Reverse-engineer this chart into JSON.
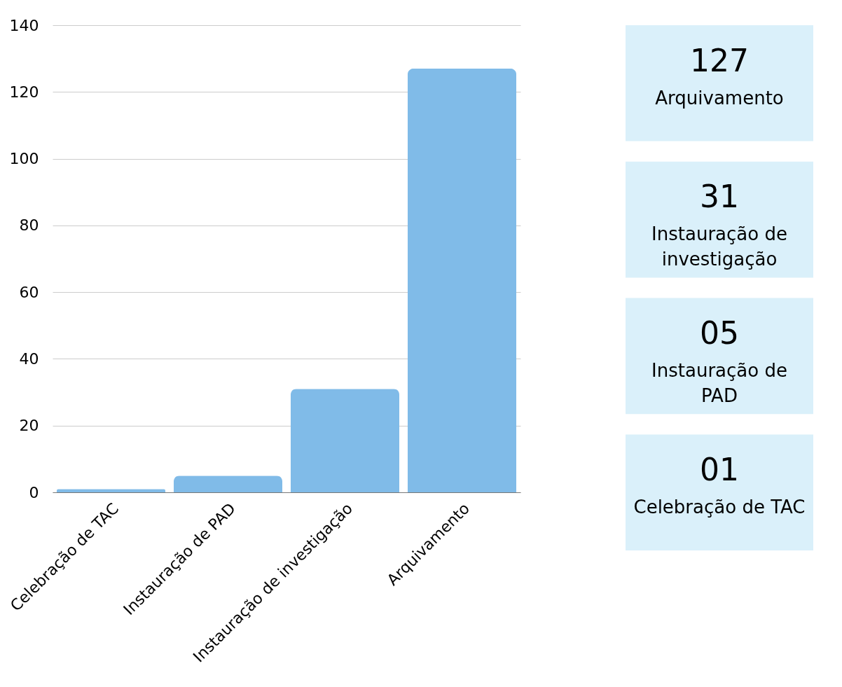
{
  "chart_data": [
    {
      "type": "bar",
      "categories": [
        "Celebração de TAC",
        "Instauração de PAD",
        "Instauração de investigação",
        "Arquivamento"
      ],
      "values": [
        1,
        5,
        31,
        127
      ],
      "color": "#80bbe8",
      "ylim": [
        0,
        140
      ],
      "yticks": [
        0,
        20,
        40,
        60,
        80,
        100,
        120,
        140
      ],
      "grid": "y"
    },
    {
      "type": "other",
      "color": "#daf0fa",
      "annotations": [
        "127",
        "Arquivamento",
        "31",
        "Instauração de investigação",
        "05",
        "Instauração de PAD",
        "01",
        "Celebração de TAC"
      ]
    }
  ]
}
